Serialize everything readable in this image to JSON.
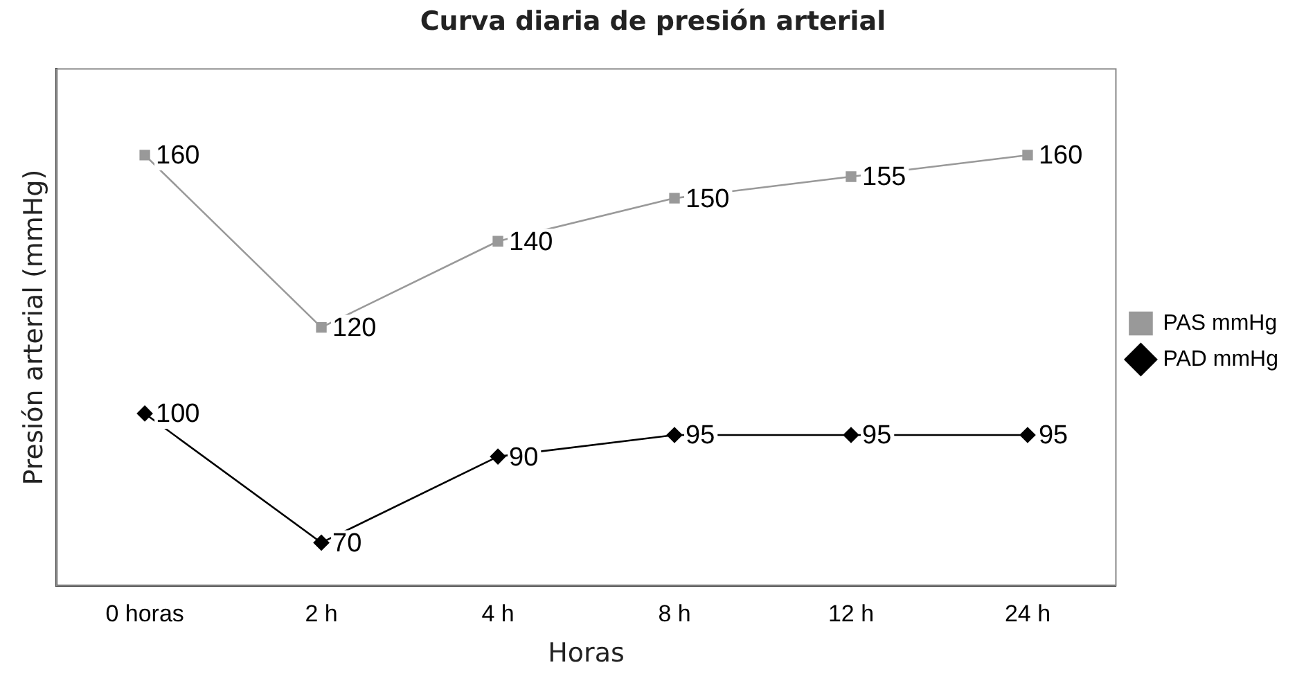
{
  "chart_data": {
    "type": "line",
    "title": "Curva diaria de presión arterial",
    "xlabel": "Horas",
    "ylabel": "Presión arterial (mmHg)",
    "categories": [
      "0 horas",
      "2 h",
      "4 h",
      "8 h",
      "12 h",
      "24 h"
    ],
    "series": [
      {
        "name": "PAS mmHg",
        "color": "#999999",
        "marker": "square",
        "values": [
          160,
          120,
          140,
          150,
          155,
          160
        ]
      },
      {
        "name": "PAD mmHg",
        "color": "#000000",
        "marker": "diamond",
        "values": [
          100,
          70,
          90,
          95,
          95,
          95
        ]
      }
    ],
    "data_labels": true,
    "legend": "right",
    "grid": false,
    "tick_labels": "x",
    "line_style": "solid"
  }
}
